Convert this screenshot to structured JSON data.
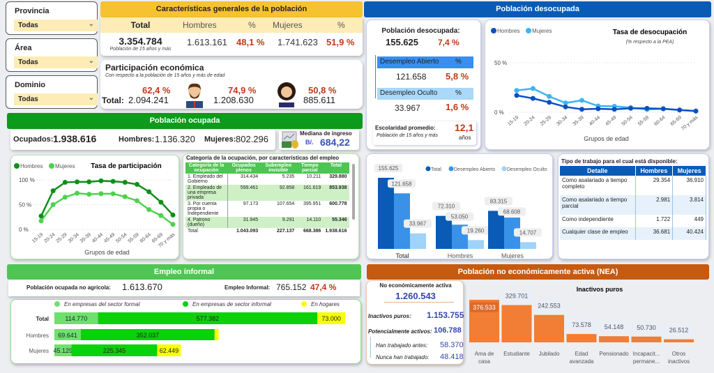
{
  "filters": [
    {
      "label": "Provincia",
      "value": "Todas"
    },
    {
      "label": "Área",
      "value": "Todas"
    },
    {
      "label": "Dominio",
      "value": "Todas"
    }
  ],
  "general": {
    "title": "Características generales de la población",
    "col_total": "Total",
    "col_hombres": "Hombres",
    "col_pct": "%",
    "col_mujeres": "Mujeres",
    "total": "3.354.784",
    "total_note": "Población de 15 años y más",
    "hombres": "1.613.161",
    "hombres_pct": "48,1 %",
    "mujeres": "1.741.623",
    "mujeres_pct": "51,9 %"
  },
  "participacion": {
    "title": "Participación económica",
    "subtitle": "Con respecto a la población de 15 años y más de edad",
    "total_label": "Total:",
    "total_pct": "62,4 %",
    "total": "2.094.241",
    "hombres_pct": "74,9 %",
    "hombres": "1.208.630",
    "mujeres_pct": "50,8 %",
    "mujeres": "885.611"
  },
  "ocupada": {
    "title": "Población ocupada",
    "ocupados_label": "Ocupados:",
    "ocupados": "1.938.616",
    "hombres_label": "Hombres:",
    "hombres": "1.136.320",
    "mujeres_label": "Mujeres:",
    "mujeres": "802.296",
    "mediana_label": "Mediana de ingreso",
    "mediana_currency": "B/.",
    "mediana": "684,22"
  },
  "categoria_table": {
    "title": "Categoría de la ocupación, por características del empleo",
    "headers": [
      "Categoría de la ocupación",
      "Ocupados plenos",
      "Subempleo invisible",
      "Tiempo parcial",
      "Total"
    ],
    "rows": [
      [
        "1. Empleado del Gobierno",
        "314.434",
        "5.235",
        "10.211",
        "329.880"
      ],
      [
        "2. Empleado de una empresa privada",
        "599.461",
        "92.858",
        "161.619",
        "853.938"
      ],
      [
        "3. Por cuenta propia o Independiente",
        "97.173",
        "107.654",
        "395.951",
        "600.778"
      ],
      [
        "4. Patrono (dueño)",
        "31.945",
        "9.291",
        "14.110",
        "55.346"
      ]
    ],
    "total_row": [
      "Total",
      "1.043.093",
      "227.137",
      "668.386",
      "1.938.616"
    ]
  },
  "desocupada": {
    "title": "Población desocupada",
    "label": "Población desocupada:",
    "value": "155.625",
    "pct": "7,4 %",
    "abierto_label": "Desempleo Abierto",
    "abierto": "121.658",
    "abierto_pct": "5,8 %",
    "oculto_label": "Desempleo Oculto",
    "oculto": "33.967",
    "oculto_pct": "1,6 %",
    "pct_label": "%",
    "escolaridad_label": "Escolaridad promedio:",
    "escolaridad_note": "Población de 15 años y más",
    "escolaridad": "12,1",
    "escolaridad_unit": "años"
  },
  "tipo_trabajo": {
    "title": "Tipo de trabajo para el cual está disponible:",
    "headers": [
      "Detalle",
      "Hombres",
      "Mujeres"
    ],
    "rows": [
      [
        "Como asalariado a tiempo completo",
        "29.354",
        "36.910"
      ],
      [
        "Como asalariado a tiempo parcial",
        "2.981",
        "3.814"
      ],
      [
        "Como independiente",
        "1.722",
        "449"
      ],
      [
        "Cualquier clase de empleo",
        "36.681",
        "40.424"
      ]
    ]
  },
  "informal": {
    "title": "Empleo informal",
    "no_agricola_label": "Población ocupada no agrícola:",
    "no_agricola": "1.613.670",
    "informal_label": "Empleo Informal:",
    "informal": "765.152",
    "informal_pct": "47,4 %"
  },
  "nea": {
    "title": "Población no económicamente activa (NEA)",
    "label": "No económicamente activa",
    "value": "1.260.543",
    "inactivos_label": "Inactivos puros:",
    "inactivos": "1.153.755",
    "potenciales_label": "Potencialmente activos:",
    "potenciales": "106.788",
    "antes_label": "Han trabajado antes:",
    "antes": "58.370",
    "nunca_label": "Nunca han trabajado:",
    "nunca": "48.418"
  },
  "colors": {
    "green_dark": "#0e8f1a",
    "green_light": "#4fd14f",
    "blue_dark": "#0a4fc4",
    "blue_light": "#3db4f2",
    "orange": "#f27d35",
    "yellow": "#f7ff00"
  },
  "chart_data": [
    {
      "id": "participacion",
      "type": "line",
      "title": "Tasa de participación",
      "xlabel": "Grupos de edad",
      "ylim": [
        0,
        100
      ],
      "yticks": [
        "0 %",
        "50 %",
        "100 %"
      ],
      "x": [
        "15-19",
        "20-24",
        "25-29",
        "30-34",
        "35-39",
        "40-44",
        "45-49",
        "50-54",
        "55-59",
        "60-64",
        "65-69",
        "70 y más"
      ],
      "series": [
        {
          "name": "Hombres",
          "color": "#0e8f1a",
          "values": [
            27,
            78,
            95,
            96,
            96,
            98,
            97,
            95,
            91,
            76,
            55,
            29
          ]
        },
        {
          "name": "Mujeres",
          "color": "#4fd14f",
          "values": [
            17,
            50,
            65,
            73,
            71,
            72,
            72,
            66,
            58,
            40,
            28,
            10
          ]
        }
      ]
    },
    {
      "id": "desocupacion",
      "type": "line",
      "title": "Tasa de desocupación",
      "subtitle": "(% respecto a la PEA)",
      "xlabel": "Grupos de edad",
      "ylim": [
        0,
        50
      ],
      "yticks": [
        "0 %",
        "50 %"
      ],
      "x": [
        "15-19",
        "20-24",
        "25-29",
        "30-34",
        "35-39",
        "40-44",
        "45-49",
        "50-54",
        "55-59",
        "60-64",
        "65-69",
        "70 y más"
      ],
      "series": [
        {
          "name": "Hombres",
          "color": "#0a4fc4",
          "values": [
            17,
            14,
            10,
            5.4,
            3,
            3.5,
            3,
            4,
            4,
            3.5,
            2.3,
            1.2
          ]
        },
        {
          "name": "Mujeres",
          "color": "#3db4f2",
          "values": [
            22,
            24,
            16,
            9.4,
            12,
            6.3,
            6,
            4.7,
            2.8,
            3.5,
            2.3,
            1.2
          ]
        }
      ]
    },
    {
      "id": "desocupados_bar",
      "type": "bar",
      "categories": [
        "Total",
        "Hombres",
        "Mujeres"
      ],
      "series": [
        {
          "name": "Total",
          "color": "#0a5bb5",
          "values": [
            155625,
            72310,
            83315
          ],
          "labels": [
            "155.625",
            "72.310",
            "83.315"
          ]
        },
        {
          "name": "Desempleo Abierto",
          "color": "#3a92e8",
          "values": [
            121658,
            53050,
            68608
          ],
          "labels": [
            "121.658",
            "53.050",
            "68.608"
          ]
        },
        {
          "name": "Desempleo Oculto",
          "color": "#9fd3f7",
          "values": [
            33967,
            19260,
            14707
          ],
          "labels": [
            "33.967",
            "19.260",
            "14.707"
          ]
        }
      ]
    },
    {
      "id": "informal_bar",
      "type": "bar",
      "orientation": "horizontal-stacked",
      "categories": [
        "Total",
        "Hombres",
        "Mujeres"
      ],
      "series": [
        {
          "name": "En empresas del sector formal",
          "color": "#6ee06e",
          "values": [
            114770,
            69641,
            45129
          ],
          "labels": [
            "114.770",
            "69.641",
            "45.129"
          ]
        },
        {
          "name": "En empresas de sector informal",
          "color": "#0ad10a",
          "values": [
            577382,
            352037,
            225345
          ],
          "labels": [
            "577.382",
            "352.037",
            "225.345"
          ]
        },
        {
          "name": "En hogares",
          "color": "#f7ff00",
          "values": [
            73000,
            10551,
            62449
          ],
          "labels": [
            "73.000",
            "",
            "62.449"
          ]
        }
      ]
    },
    {
      "id": "inactivos_bar",
      "type": "bar",
      "title": "Inactivos puros",
      "categories": [
        "Ama de casa",
        "Estudiante",
        "Jubilado",
        "Edad avanzada",
        "Pensionado",
        "Incapacit... permane...",
        "Otros inactivos"
      ],
      "values": [
        376533,
        329701,
        242553,
        73578,
        54148,
        50730,
        26512
      ],
      "labels": [
        "376.533",
        "329.701",
        "242.553",
        "73.578",
        "54.148",
        "50.730",
        "26.512"
      ],
      "color": "#f27d35"
    }
  ]
}
